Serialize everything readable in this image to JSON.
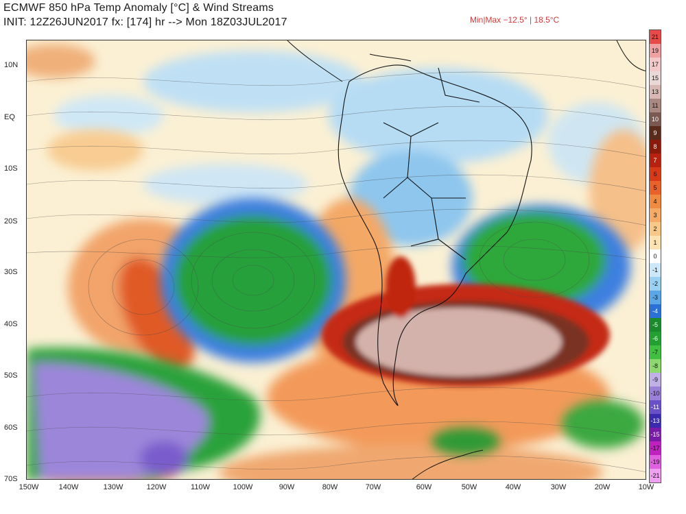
{
  "header": {
    "title_line1": "ECMWF 850 hPa Temp Anomaly [°C] & Wind Streams",
    "title_line2": "INIT: 12Z26JUN2017 fx: [174] hr --> Mon 18Z03JUL2017",
    "minmax": "Min|Max −12.5° | 18.5°C"
  },
  "axes": {
    "lat_labels": [
      "10N",
      "EQ",
      "10S",
      "20S",
      "30S",
      "40S",
      "50S",
      "60S",
      "70S"
    ],
    "lon_labels": [
      "150W",
      "140W",
      "130W",
      "120W",
      "110W",
      "100W",
      "90W",
      "80W",
      "70W",
      "60W",
      "50W",
      "40W",
      "30W",
      "20W",
      "10W"
    ]
  },
  "colorbar": {
    "labels": [
      "21",
      "19",
      "17",
      "15",
      "13",
      "11",
      "10",
      "9",
      "8",
      "7",
      "6",
      "5",
      "4",
      "3",
      "2",
      "1",
      "0",
      "-1",
      "-2",
      "-3",
      "-4",
      "-5",
      "-6",
      "-7",
      "-8",
      "-9",
      "-10",
      "-11",
      "-13",
      "-15",
      "-17",
      "-19",
      "-21"
    ],
    "colors": [
      "#e84a4a",
      "#f0a0a0",
      "#f2c8c8",
      "#ead8d6",
      "#d8b8b2",
      "#a88880",
      "#7a5a50",
      "#5a2a1a",
      "#8b1a0a",
      "#b8200f",
      "#d83a18",
      "#e8602a",
      "#f08a40",
      "#f5aa66",
      "#f8c888",
      "#fbe2b0",
      "#ffffff",
      "#cce8f8",
      "#9ad0f2",
      "#5aa6e6",
      "#2a70d6",
      "#1a8a2a",
      "#22a030",
      "#40c040",
      "#8ed870",
      "#c0b0e8",
      "#9a80d8",
      "#6a50c8",
      "#3a2ab0",
      "#7a1aa8",
      "#c020c0",
      "#e060e0",
      "#f0a0f0"
    ]
  },
  "legend_colors": {
    "ocean_neutral": "#fbf2d8",
    "warm_anomaly": "#e8602a",
    "strong_warm_core": "#d8b8b2",
    "cold_anomaly": "#22a030",
    "very_cold": "#9a80d8",
    "coastline": "#111111"
  }
}
